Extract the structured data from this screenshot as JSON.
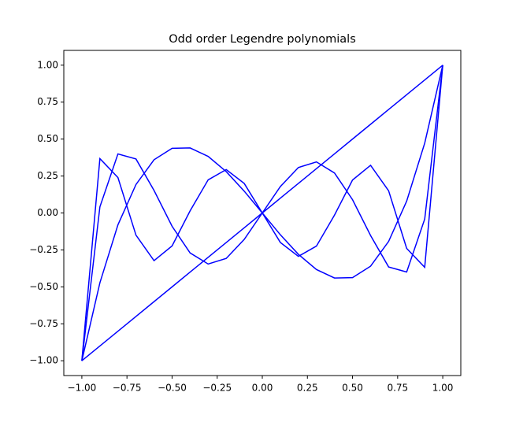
{
  "chart_data": {
    "type": "line",
    "title": "Odd order Legendre polynomials",
    "x": [
      -1,
      -0.9,
      -0.8,
      -0.7,
      -0.6,
      -0.5,
      -0.4,
      -0.3,
      -0.2,
      -0.1,
      0,
      0.1,
      0.2,
      0.3,
      0.4,
      0.5,
      0.6,
      0.7,
      0.8,
      0.9,
      1
    ],
    "series": [
      {
        "color": "#0000ff",
        "values": [
          -1,
          -0.9,
          -0.8,
          -0.7,
          -0.6,
          -0.5,
          -0.4,
          -0.3,
          -0.2,
          -0.1,
          0,
          0.1,
          0.2,
          0.3,
          0.4,
          0.5,
          0.6,
          0.7,
          0.8,
          0.9,
          1
        ]
      },
      {
        "color": "#0000ff",
        "values": [
          -1,
          -0.4725,
          -0.08,
          0.1925,
          0.36,
          0.4375,
          0.44,
          0.3825,
          0.28,
          0.1475,
          0,
          -0.1475,
          -0.28,
          -0.3825,
          -0.44,
          -0.4375,
          -0.36,
          -0.1925,
          0.08,
          0.4725,
          1
        ]
      },
      {
        "color": "#0000ff",
        "values": [
          -1,
          0.0411,
          0.3995,
          0.3652,
          0.1526,
          -0.0898,
          -0.2706,
          -0.3454,
          -0.3075,
          -0.1788,
          0,
          0.1788,
          0.3075,
          0.3454,
          0.2706,
          0.0898,
          -0.1526,
          -0.3652,
          -0.3995,
          -0.0411,
          1
        ]
      },
      {
        "color": "#0000ff",
        "values": [
          -1,
          0.3678,
          0.2397,
          -0.1502,
          -0.3226,
          -0.2231,
          0.0146,
          0.2241,
          0.2935,
          0.1995,
          0,
          -0.1995,
          -0.2935,
          -0.2241,
          -0.0146,
          0.2231,
          0.3226,
          0.1502,
          -0.2397,
          -0.3678,
          1
        ]
      }
    ],
    "xlim": [
      -1.1,
      1.1
    ],
    "ylim": [
      -1.1,
      1.1
    ],
    "xticks": [
      {
        "value": -1,
        "label": "−1.00"
      },
      {
        "value": -0.75,
        "label": "−0.75"
      },
      {
        "value": -0.5,
        "label": "−0.50"
      },
      {
        "value": -0.25,
        "label": "−0.25"
      },
      {
        "value": 0,
        "label": "0.00"
      },
      {
        "value": 0.25,
        "label": "0.25"
      },
      {
        "value": 0.5,
        "label": "0.50"
      },
      {
        "value": 0.75,
        "label": "0.75"
      },
      {
        "value": 1,
        "label": "1.00"
      }
    ],
    "yticks": [
      {
        "value": -1,
        "label": "−1.00"
      },
      {
        "value": -0.75,
        "label": "−0.75"
      },
      {
        "value": -0.5,
        "label": "−0.50"
      },
      {
        "value": -0.25,
        "label": "−0.25"
      },
      {
        "value": 0,
        "label": "0.00"
      },
      {
        "value": 0.25,
        "label": "0.25"
      },
      {
        "value": 0.5,
        "label": "0.50"
      },
      {
        "value": 0.75,
        "label": "0.75"
      },
      {
        "value": 1,
        "label": "1.00"
      }
    ]
  }
}
